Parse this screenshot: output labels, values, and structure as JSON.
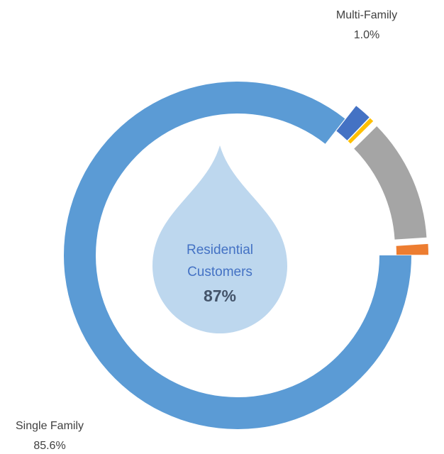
{
  "chart_data": {
    "type": "donut",
    "categories": [
      "Single Family",
      null,
      null,
      null,
      "Multi-Family"
    ],
    "values": [
      85.6,
      1.6,
      0.4,
      11.4,
      1.0
    ],
    "value_labels": [
      "85.6%",
      null,
      null,
      null,
      "1.0%"
    ],
    "colors": [
      "#5b9bd5",
      "#4472c4",
      "#ffc000",
      "#a5a5a5",
      "#ed7d31"
    ],
    "annotations": [
      "Residential",
      "Customers",
      "87%"
    ]
  }
}
